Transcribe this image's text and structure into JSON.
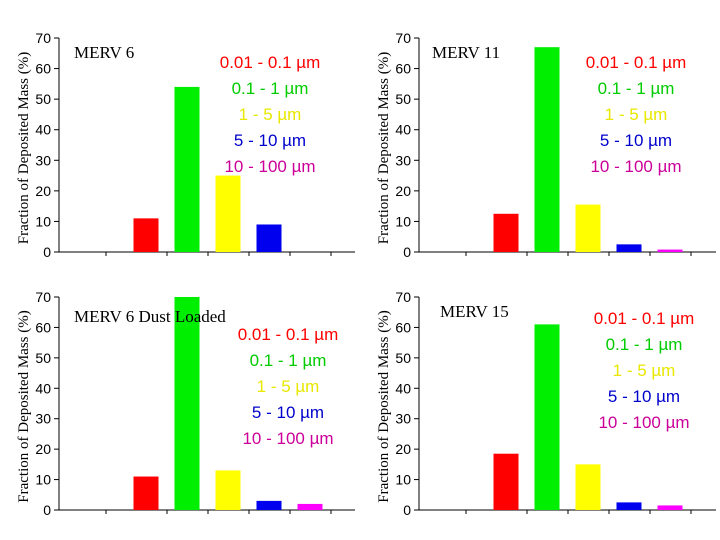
{
  "colors": {
    "series": [
      "#ff0000",
      "#00ee00",
      "#ffff00",
      "#0000ee",
      "#ff00ff"
    ],
    "legend": [
      "#ff0000",
      "#00cc00",
      "#e8e800",
      "#0000cc",
      "#cc0099"
    ],
    "axis": "#000000"
  },
  "chart_data": [
    {
      "type": "bar",
      "title": "MERV 6",
      "ylabel": "Fraction of Deposited Mass (%)",
      "ylim": [
        0,
        70
      ],
      "yticks": [
        "0",
        "10",
        "20",
        "30",
        "40",
        "50",
        "60",
        "70"
      ],
      "categories": [
        "0.01 - 0.1 µm",
        "0.1 - 1 µm",
        "1 - 5 µm",
        "5 - 10 µm",
        "10 - 100 µm"
      ],
      "values": [
        11,
        54,
        25,
        9,
        0
      ]
    },
    {
      "type": "bar",
      "title": "MERV 11",
      "ylabel": "Fraction of Deposited Mass (%)",
      "ylim": [
        0,
        70
      ],
      "yticks": [
        "0",
        "10",
        "20",
        "30",
        "40",
        "50",
        "60",
        "70"
      ],
      "categories": [
        "0.01 - 0.1 µm",
        "0.1 - 1 µm",
        "1 - 5 µm",
        "5 - 10 µm",
        "10 - 100 µm"
      ],
      "values": [
        12.5,
        67,
        15.5,
        2.5,
        0.8
      ]
    },
    {
      "type": "bar",
      "title": "MERV 6 Dust Loaded",
      "ylabel": "Fraction of Deposited Mass (%)",
      "ylim": [
        0,
        70
      ],
      "yticks": [
        "0",
        "10",
        "20",
        "30",
        "40",
        "50",
        "60",
        "70"
      ],
      "categories": [
        "0.01 - 0.1 µm",
        "0.1 - 1 µm",
        "1 - 5 µm",
        "5 - 10 µm",
        "10 - 100 µm"
      ],
      "values": [
        11,
        70,
        13,
        3,
        2
      ]
    },
    {
      "type": "bar",
      "title": "MERV 15",
      "ylabel": "Fraction of Deposited Mass (%)",
      "ylim": [
        0,
        70
      ],
      "yticks": [
        "0",
        "10",
        "20",
        "30",
        "40",
        "50",
        "60",
        "70"
      ],
      "categories": [
        "0.01 - 0.1 µm",
        "0.1 - 1 µm",
        "1 - 5 µm",
        "5 - 10 µm",
        "10 - 100 µm"
      ],
      "values": [
        18.5,
        61,
        15,
        2.5,
        1.5
      ]
    }
  ]
}
